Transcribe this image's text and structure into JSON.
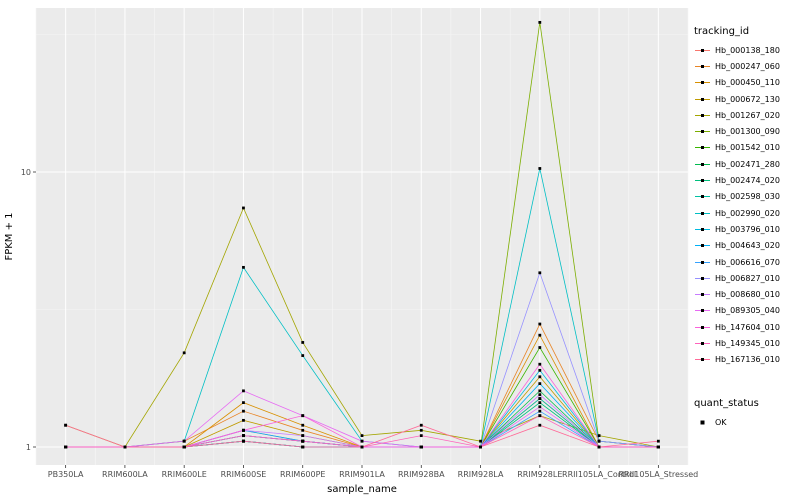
{
  "chart_data": {
    "type": "line",
    "title": "",
    "xlabel": "sample_name",
    "ylabel": "FPKM + 1",
    "y_scale": "log10",
    "y_ticks": [
      1,
      10
    ],
    "ylim": [
      0.95,
      40
    ],
    "grid": true,
    "panel_color": "#EBEBEB",
    "legend_position": "right",
    "legend_title": "tracking_id",
    "shape_legend": {
      "title": "quant_status",
      "entries": [
        {
          "label": "OK",
          "shape": "square",
          "color": "#000000"
        }
      ]
    },
    "categories": [
      "PB350LA",
      "RRIM600LA",
      "RRIM600LE",
      "RRIM600SE",
      "RRIM600PE",
      "RRIM901LA",
      "RRIM928BA",
      "RRIM928LA",
      "RRIM928LE",
      "RRII105LA_Control",
      "RRII105LA_Stressed"
    ],
    "series": [
      {
        "name": "Hb_000138_180",
        "color": "#F8766D",
        "values": [
          1,
          1,
          1,
          1.15,
          1.05,
          1,
          1,
          1,
          1.5,
          1,
          1
        ]
      },
      {
        "name": "Hb_000247_060",
        "color": "#E88526",
        "values": [
          1,
          1,
          1.05,
          1.35,
          1.15,
          1,
          1,
          1,
          2.8,
          1.05,
          1
        ]
      },
      {
        "name": "Hb_000450_110",
        "color": "#D89000",
        "values": [
          1,
          1,
          1,
          1.45,
          1.2,
          1,
          1,
          1,
          2.55,
          1,
          1
        ]
      },
      {
        "name": "Hb_000672_130",
        "color": "#C09B00",
        "values": [
          1,
          1,
          1,
          1.25,
          1.1,
          1,
          1,
          1,
          1.8,
          1,
          1
        ]
      },
      {
        "name": "Hb_001267_020",
        "color": "#A3A500",
        "values": [
          1.2,
          1,
          2.2,
          7.4,
          2.4,
          1.1,
          1.15,
          1.05,
          1.3,
          1.1,
          1
        ]
      },
      {
        "name": "Hb_001300_090",
        "color": "#7CAE00",
        "values": [
          1,
          1,
          1,
          1.1,
          1.05,
          1,
          1,
          1,
          35,
          1.05,
          1
        ]
      },
      {
        "name": "Hb_001542_010",
        "color": "#39B600",
        "values": [
          1,
          1,
          1,
          1.05,
          1,
          1,
          1,
          1,
          2.3,
          1,
          1
        ]
      },
      {
        "name": "Hb_002471_280",
        "color": "#00BB4E",
        "values": [
          1,
          1,
          1,
          1.05,
          1,
          1,
          1,
          1,
          1.6,
          1,
          1
        ]
      },
      {
        "name": "Hb_002474_020",
        "color": "#00BF7D",
        "values": [
          1,
          1,
          1,
          1.1,
          1.05,
          1,
          1,
          1,
          1.45,
          1,
          1
        ]
      },
      {
        "name": "Hb_002598_030",
        "color": "#00C1A3",
        "values": [
          1,
          1,
          1,
          1.05,
          1,
          1,
          1,
          1,
          1.5,
          1,
          1
        ]
      },
      {
        "name": "Hb_002990_020",
        "color": "#00BFC4",
        "values": [
          1,
          1,
          1.05,
          4.5,
          2.15,
          1.05,
          1,
          1,
          10.3,
          1.05,
          1
        ]
      },
      {
        "name": "Hb_003796_010",
        "color": "#00BAE0",
        "values": [
          1,
          1,
          1,
          1.1,
          1.05,
          1,
          1,
          1,
          1.9,
          1,
          1
        ]
      },
      {
        "name": "Hb_004643_020",
        "color": "#00B0F6",
        "values": [
          1,
          1,
          1,
          1.15,
          1.05,
          1,
          1,
          1,
          1.7,
          1,
          1
        ]
      },
      {
        "name": "Hb_006616_070",
        "color": "#35A2FF",
        "values": [
          1,
          1,
          1,
          1.05,
          1,
          1,
          1,
          1,
          1.35,
          1,
          1
        ]
      },
      {
        "name": "Hb_006827_010",
        "color": "#9590FF",
        "values": [
          1,
          1,
          1,
          1.1,
          1.05,
          1,
          1,
          1,
          4.3,
          1.05,
          1
        ]
      },
      {
        "name": "Hb_008680_010",
        "color": "#C77CFF",
        "values": [
          1,
          1,
          1,
          1.15,
          1.1,
          1,
          1,
          1,
          1.55,
          1,
          1
        ]
      },
      {
        "name": "Hb_089305_040",
        "color": "#E76BF3",
        "values": [
          1,
          1,
          1.05,
          1.6,
          1.3,
          1.05,
          1,
          1,
          1.4,
          1,
          1
        ]
      },
      {
        "name": "Hb_147604_010",
        "color": "#FA62DB",
        "values": [
          1,
          1,
          1,
          1.15,
          1.3,
          1,
          1,
          1,
          2.0,
          1,
          1
        ]
      },
      {
        "name": "Hb_149345_010",
        "color": "#FF62BC",
        "values": [
          1,
          1,
          1,
          1.1,
          1.05,
          1,
          1.1,
          1,
          1.3,
          1,
          1
        ]
      },
      {
        "name": "Hb_167136_010",
        "color": "#FF6A98",
        "values": [
          1.2,
          1,
          1,
          1.05,
          1,
          1,
          1.2,
          1,
          1.2,
          1,
          1.05
        ]
      }
    ]
  }
}
